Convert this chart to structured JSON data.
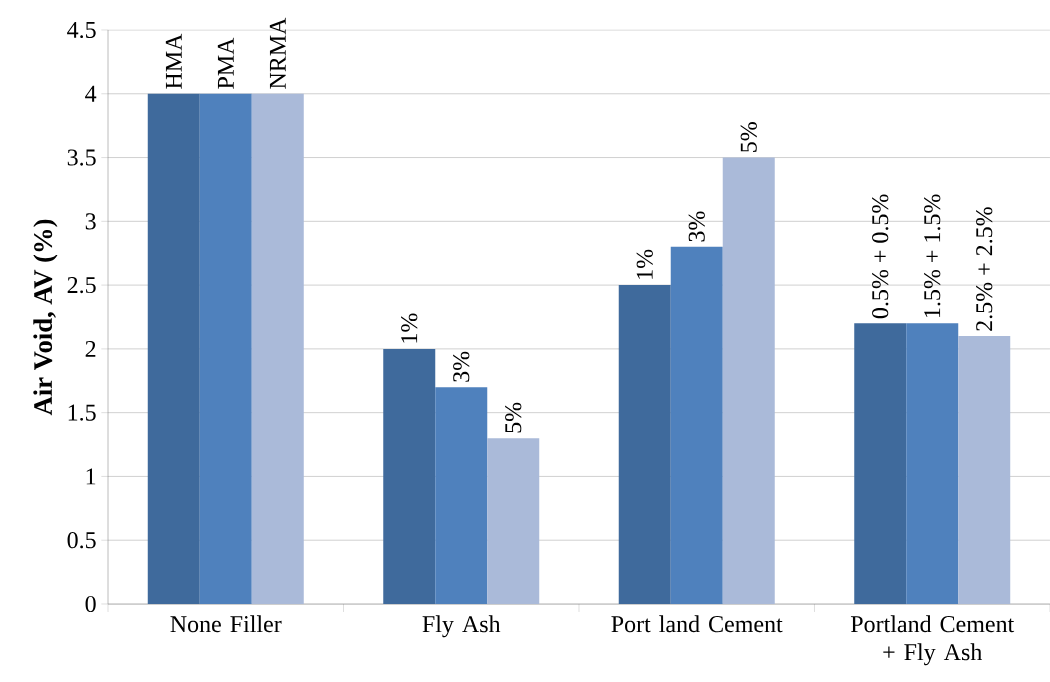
{
  "chart_data": {
    "type": "bar",
    "ylabel": "Air Void, AV (%)",
    "categories": [
      "None Filler",
      "Fly Ash",
      "Port land Cement",
      "Portland Cement + Fly Ash"
    ],
    "series": [
      {
        "color": "#3f6a9c",
        "values": [
          4,
          2,
          2.5,
          2.2
        ]
      },
      {
        "color": "#4f81bd",
        "values": [
          4,
          1.7,
          2.8,
          2.2
        ]
      },
      {
        "color": "#aabad9",
        "values": [
          4,
          1.3,
          3.5,
          2.1
        ]
      }
    ],
    "annotations": [
      "HMA",
      "PMA",
      "NRMA",
      "1%",
      "3%",
      "5%",
      "1%",
      "3%",
      "5%",
      "0.5% + 0.5%",
      "1.5% + 1.5%",
      "2.5% + 2.5%"
    ],
    "ylim": [
      0,
      4.5
    ],
    "yticks": [
      0,
      0.5,
      1,
      1.5,
      2,
      2.5,
      3,
      3.5,
      4,
      4.5
    ],
    "grid": "y"
  }
}
